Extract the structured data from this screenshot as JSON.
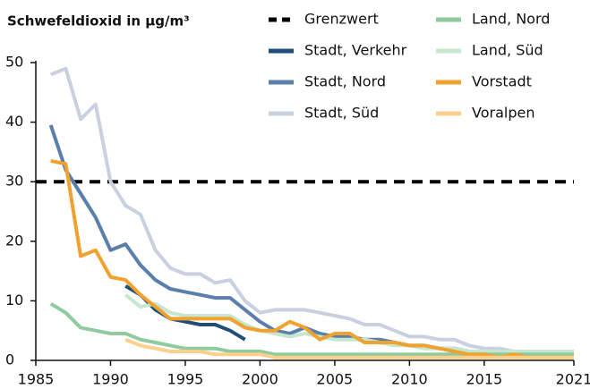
{
  "chart_data": {
    "type": "line",
    "title": "Schwefeldioxid in µg/m³",
    "x": [
      1986,
      1987,
      1988,
      1989,
      1990,
      1991,
      1992,
      1993,
      1994,
      1995,
      1996,
      1997,
      1998,
      1999,
      2000,
      2001,
      2002,
      2003,
      2004,
      2005,
      2006,
      2007,
      2008,
      2009,
      2010,
      2011,
      2012,
      2013,
      2014,
      2015,
      2016,
      2017,
      2018,
      2019,
      2020,
      2021
    ],
    "xlim": [
      1985,
      2021
    ],
    "xticks": [
      1985,
      1990,
      1995,
      2000,
      2005,
      2010,
      2015,
      2021
    ],
    "ylim": [
      0,
      50
    ],
    "yticks": [
      0,
      10,
      20,
      30,
      40,
      50
    ],
    "reference_line": {
      "name": "Grenzwert",
      "value": 30,
      "color": "#000000"
    },
    "series": [
      {
        "name": "Stadt, Verkehr",
        "color": "#1f4e79",
        "values": [
          null,
          null,
          null,
          null,
          null,
          12.5,
          11,
          8.5,
          7,
          6.5,
          6,
          6,
          5,
          3.5,
          null,
          null,
          null,
          null,
          null,
          null,
          null,
          null,
          null,
          null,
          null,
          null,
          null,
          null,
          null,
          null,
          null,
          null,
          null,
          null,
          null,
          null
        ]
      },
      {
        "name": "Stadt, Nord",
        "color": "#5b7fad",
        "values": [
          39.5,
          32,
          28,
          24,
          18.5,
          19.5,
          16,
          13.5,
          12,
          11.5,
          11,
          10.5,
          10.5,
          8.5,
          6.5,
          5,
          4.5,
          5.5,
          4.5,
          4,
          4,
          3.5,
          3.5,
          3,
          2.5,
          2.5,
          2,
          2,
          1.5,
          1.5,
          1.5,
          1,
          1,
          1,
          1,
          1
        ]
      },
      {
        "name": "Stadt, Süd",
        "color": "#c9d1e1",
        "values": [
          48,
          49,
          40.5,
          43,
          30,
          26,
          24.5,
          18.5,
          15.5,
          14.5,
          14.5,
          13,
          13.5,
          10,
          8,
          8.5,
          8.5,
          8.5,
          8,
          7.5,
          7,
          6,
          6,
          5,
          4,
          4,
          3.5,
          3.5,
          2.5,
          2,
          2,
          1.5,
          1.5,
          1.5,
          1.5,
          1.5
        ]
      },
      {
        "name": "Land, Nord",
        "color": "#8ecb9f",
        "values": [
          9.5,
          8,
          5.5,
          5,
          4.5,
          4.5,
          3.5,
          3,
          2.5,
          2,
          2,
          2,
          1.5,
          1.5,
          1.5,
          1,
          1,
          1,
          1,
          1,
          1,
          1,
          1,
          1,
          1,
          1,
          1,
          1,
          1,
          1,
          1,
          1,
          1,
          1,
          1,
          1
        ]
      },
      {
        "name": "Land, Süd",
        "color": "#c5e6cf",
        "values": [
          null,
          null,
          null,
          null,
          null,
          11,
          9,
          9.5,
          8,
          7.5,
          7.5,
          7.5,
          7.5,
          6,
          5,
          4.5,
          4,
          4.5,
          4,
          3.5,
          3.5,
          3.5,
          3,
          2.5,
          2.5,
          2,
          2,
          2,
          1.5,
          1.5,
          1.5,
          1.5,
          1.5,
          1.5,
          1.5,
          1.5
        ]
      },
      {
        "name": "Vorstadt",
        "color": "#f0a12e",
        "values": [
          33.5,
          33,
          17.5,
          18.5,
          14,
          13.5,
          11,
          9,
          7,
          7,
          7,
          7,
          7,
          5.5,
          5,
          5,
          6.5,
          5.5,
          3.5,
          4.5,
          4.5,
          3,
          3,
          3,
          2.5,
          2.5,
          2,
          1.5,
          1,
          1,
          0.5,
          1,
          0.5,
          0.5,
          0.5,
          0.5
        ]
      },
      {
        "name": "Voralpen",
        "color": "#fbd08c",
        "values": [
          null,
          null,
          null,
          null,
          null,
          3.5,
          2.5,
          2,
          1.5,
          1.5,
          1.5,
          1,
          1,
          1,
          1,
          0.5,
          0.5,
          0.5,
          0.5,
          0.5,
          0.5,
          0.5,
          0.5,
          0.5,
          0.5,
          0.5,
          0.5,
          0.5,
          0.5,
          0.5,
          0.5,
          0.5,
          0.5,
          0.5,
          0.5,
          0.5
        ]
      }
    ]
  }
}
